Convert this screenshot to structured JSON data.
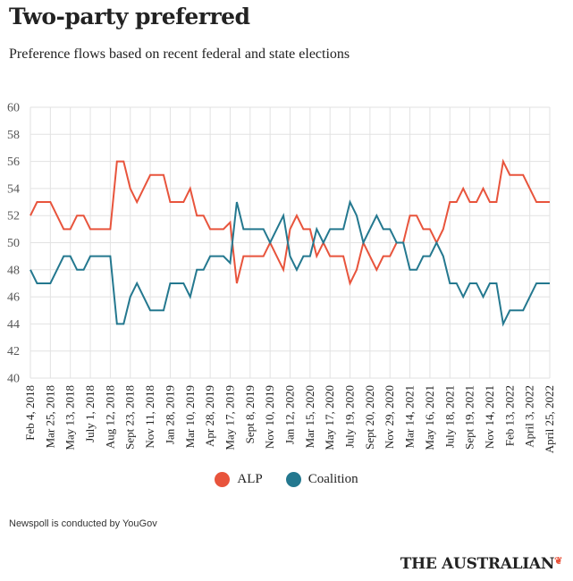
{
  "title": "Two-party preferred",
  "subtitle": "Preference flows based on recent federal and state elections",
  "footnote": "Newspoll is conducted by YouGov",
  "brand": {
    "name": "THE AUSTRALIAN",
    "mark": "❦"
  },
  "colors": {
    "alp": "#e8543c",
    "coalition": "#24788f",
    "grid": "#e2e2e2",
    "text": "#222222"
  },
  "chart_data": {
    "type": "line",
    "title": "Two-party preferred",
    "subtitle": "Preference flows based on recent federal and state elections",
    "xlabel": "",
    "ylabel": "",
    "ylim": [
      40,
      60
    ],
    "yticks": [
      40,
      42,
      44,
      46,
      48,
      50,
      52,
      54,
      56,
      58,
      60
    ],
    "grid": true,
    "legend_position": "bottom-center",
    "x_tick_labels": [
      "Feb 4, 2018",
      "Mar 25, 2018",
      "May 13, 2018",
      "July 1, 2018",
      "Aug 12, 2018",
      "Sept 23, 2018",
      "Nov 11, 2018",
      "Jan 28, 2019",
      "Mar 10, 2019",
      "Apr 28, 2019",
      "May 17, 2019",
      "Sept 8, 2019",
      "Nov 10, 2019",
      "Jan 12, 2020",
      "Mar 15, 2020",
      "May 17, 2020",
      "July 19, 2020",
      "Sept 20, 2020",
      "Nov 29, 2020",
      "Mar 14, 2021",
      "May 16, 2021",
      "July 18, 2021",
      "Sept 19, 2021",
      "Nov 14, 2021",
      "Feb 13, 2022",
      "April 3, 2022",
      "April 25, 2022"
    ],
    "series": [
      {
        "name": "ALP",
        "color": "#e8543c",
        "values": [
          52,
          53,
          53,
          53,
          52,
          51,
          51,
          52,
          52,
          51,
          51,
          51,
          51,
          56,
          56,
          54,
          53,
          54,
          55,
          55,
          55,
          53,
          53,
          53,
          54,
          52,
          52,
          51,
          51,
          51,
          51.5,
          47,
          49,
          49,
          49,
          49,
          50,
          49,
          48,
          51,
          52,
          51,
          51,
          49,
          50,
          49,
          49,
          49,
          47,
          48,
          50,
          49,
          48,
          49,
          49,
          50,
          50,
          52,
          52,
          51,
          51,
          50,
          51,
          53,
          53,
          54,
          53,
          53,
          54,
          53,
          53,
          56,
          55,
          55,
          55,
          54,
          53,
          53,
          53
        ]
      },
      {
        "name": "Coalition",
        "color": "#24788f",
        "values": [
          48,
          47,
          47,
          47,
          48,
          49,
          49,
          48,
          48,
          49,
          49,
          49,
          49,
          44,
          44,
          46,
          47,
          46,
          45,
          45,
          45,
          47,
          47,
          47,
          46,
          48,
          48,
          49,
          49,
          49,
          48.5,
          53,
          51,
          51,
          51,
          51,
          50,
          51,
          52,
          49,
          48,
          49,
          49,
          51,
          50,
          51,
          51,
          51,
          53,
          52,
          50,
          51,
          52,
          51,
          51,
          50,
          50,
          48,
          48,
          49,
          49,
          50,
          49,
          47,
          47,
          46,
          47,
          47,
          46,
          47,
          47,
          44,
          45,
          45,
          45,
          46,
          47,
          47,
          47
        ]
      }
    ]
  }
}
